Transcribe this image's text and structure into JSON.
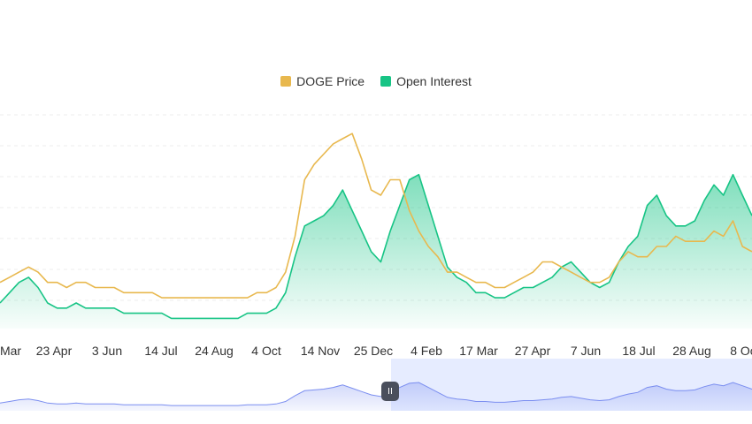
{
  "chart_data": {
    "type": "line",
    "title": "",
    "xlabel": "",
    "ylabel": "",
    "grid": true,
    "legend_position": "top-center",
    "x_ticks": [
      "Mar",
      "23 Apr",
      "3 Jun",
      "14 Jul",
      "24 Aug",
      "4 Oct",
      "14 Nov",
      "25 Dec",
      "4 Feb",
      "17 Mar",
      "27 Apr",
      "7 Jun",
      "18 Jul",
      "28 Aug",
      "8 Oc"
    ],
    "series": [
      {
        "name": "DOGE Price",
        "color": "#e8b84e",
        "fill": false,
        "values": [
          0.09,
          0.1,
          0.11,
          0.12,
          0.11,
          0.09,
          0.09,
          0.08,
          0.09,
          0.09,
          0.08,
          0.08,
          0.08,
          0.07,
          0.07,
          0.07,
          0.07,
          0.06,
          0.06,
          0.06,
          0.06,
          0.06,
          0.06,
          0.06,
          0.06,
          0.06,
          0.06,
          0.07,
          0.07,
          0.08,
          0.11,
          0.18,
          0.29,
          0.32,
          0.34,
          0.36,
          0.37,
          0.38,
          0.33,
          0.27,
          0.26,
          0.29,
          0.29,
          0.23,
          0.19,
          0.16,
          0.14,
          0.11,
          0.11,
          0.1,
          0.09,
          0.09,
          0.08,
          0.08,
          0.09,
          0.1,
          0.11,
          0.13,
          0.13,
          0.12,
          0.11,
          0.1,
          0.09,
          0.09,
          0.1,
          0.13,
          0.15,
          0.14,
          0.14,
          0.16,
          0.16,
          0.18,
          0.17,
          0.17,
          0.17,
          0.19,
          0.18,
          0.21,
          0.16,
          0.15
        ]
      },
      {
        "name": "Open Interest",
        "color": "#17c485",
        "fill": true,
        "values": [
          0.05,
          0.07,
          0.09,
          0.1,
          0.08,
          0.05,
          0.04,
          0.04,
          0.05,
          0.04,
          0.04,
          0.04,
          0.04,
          0.03,
          0.03,
          0.03,
          0.03,
          0.03,
          0.02,
          0.02,
          0.02,
          0.02,
          0.02,
          0.02,
          0.02,
          0.02,
          0.03,
          0.03,
          0.03,
          0.04,
          0.07,
          0.14,
          0.2,
          0.21,
          0.22,
          0.24,
          0.27,
          0.23,
          0.19,
          0.15,
          0.13,
          0.19,
          0.24,
          0.29,
          0.3,
          0.24,
          0.18,
          0.12,
          0.1,
          0.09,
          0.07,
          0.07,
          0.06,
          0.06,
          0.07,
          0.08,
          0.08,
          0.09,
          0.1,
          0.12,
          0.13,
          0.11,
          0.09,
          0.08,
          0.09,
          0.13,
          0.16,
          0.18,
          0.24,
          0.26,
          0.22,
          0.2,
          0.2,
          0.21,
          0.25,
          0.28,
          0.26,
          0.3,
          0.26,
          0.22
        ]
      }
    ],
    "y_range": [
      0,
      0.42
    ],
    "navigator": {
      "series_name": "Open Interest",
      "selected_range": [
        0.52,
        1.0
      ]
    }
  },
  "controls": {
    "navigator_handle_label": "II"
  }
}
